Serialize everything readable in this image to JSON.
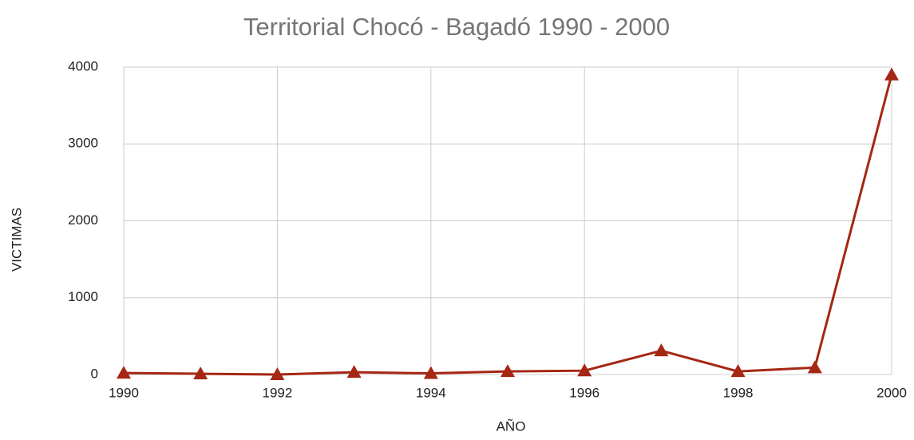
{
  "chart_data": {
    "type": "line",
    "title": "Territorial Chocó - Bagadó 1990 - 2000",
    "x_label": "AÑO",
    "y_label": "VICTIMAS",
    "x": [
      1990,
      1991,
      1992,
      1993,
      1994,
      1995,
      1996,
      1997,
      1998,
      1999,
      2000
    ],
    "series": [
      {
        "name": "VICTIMAS",
        "color": "#a52714",
        "values": [
          20,
          10,
          0,
          30,
          15,
          40,
          50,
          310,
          40,
          90,
          3900
        ]
      }
    ],
    "xlim": [
      1990,
      2000
    ],
    "xticks": [
      1990,
      1992,
      1994,
      1996,
      1998,
      2000
    ],
    "ylim": [
      0,
      4000
    ],
    "yticks": [
      0,
      1000,
      2000,
      3000,
      4000
    ],
    "grid": true
  }
}
